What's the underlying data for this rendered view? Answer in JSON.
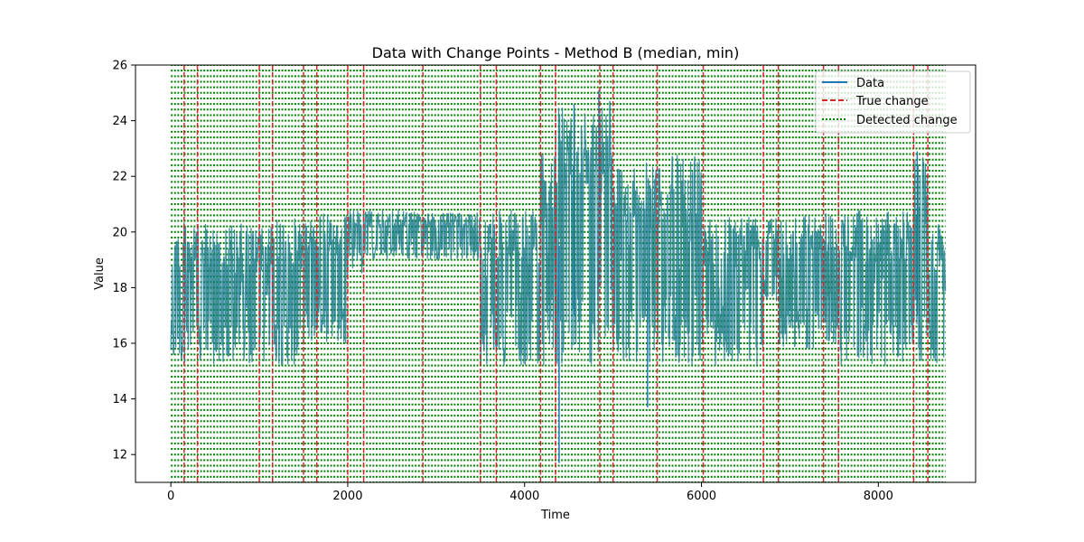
{
  "chart_data": {
    "type": "line",
    "title": "Data with Change Points - Method B (median, min)",
    "xlabel": "Time",
    "ylabel": "Value",
    "xlim": [
      -400,
      9100
    ],
    "ylim": [
      11,
      26
    ],
    "xticks": [
      0,
      2000,
      4000,
      6000,
      8000
    ],
    "yticks": [
      12,
      14,
      16,
      18,
      20,
      22,
      24,
      26
    ],
    "grid": false,
    "legend": {
      "placement": "top-right",
      "entries": [
        "Data",
        "True change",
        "Detected change"
      ]
    },
    "colors": {
      "data": "#1f77b4",
      "true_change": "#d62728",
      "detected_change": "#008000"
    },
    "series": [
      {
        "name": "Data",
        "style": "solid",
        "x_range": [
          0,
          8760
        ],
        "segments": [
          {
            "x": [
              0,
              150
            ],
            "low": 15.3,
            "high": 20.3
          },
          {
            "x": [
              150,
              300
            ],
            "low": 15.3,
            "high": 20.6
          },
          {
            "x": [
              300,
              1000
            ],
            "low": 15.2,
            "high": 20.3
          },
          {
            "x": [
              1000,
              1150
            ],
            "low": 15.3,
            "high": 20.3
          },
          {
            "x": [
              1150,
              1500
            ],
            "low": 15.2,
            "high": 20.5
          },
          {
            "x": [
              1500,
              1650
            ],
            "low": 16.0,
            "high": 20.8
          },
          {
            "x": [
              1650,
              2000
            ],
            "low": 16.0,
            "high": 20.7
          },
          {
            "x": [
              2000,
              2180
            ],
            "low": 18.5,
            "high": 20.8
          },
          {
            "x": [
              2180,
              2850
            ],
            "low": 19.0,
            "high": 20.8
          },
          {
            "x": [
              2850,
              3500
            ],
            "low": 19.0,
            "high": 20.7
          },
          {
            "x": [
              3500,
              3680
            ],
            "low": 15.2,
            "high": 20.8
          },
          {
            "x": [
              3680,
              4180
            ],
            "low": 15.2,
            "high": 20.8
          },
          {
            "x": [
              4180,
              4350
            ],
            "low": 15.2,
            "high": 22.8
          },
          {
            "x": [
              4350,
              4850
            ],
            "low": 15.2,
            "high": 24.6
          },
          {
            "x": [
              4850,
              5000
            ],
            "low": 15.3,
            "high": 25.1
          },
          {
            "x": [
              5000,
              5500
            ],
            "low": 15.3,
            "high": 22.5
          },
          {
            "x": [
              5500,
              6020
            ],
            "low": 15.2,
            "high": 22.8
          },
          {
            "x": [
              6020,
              6700
            ],
            "low": 15.2,
            "high": 20.7
          },
          {
            "x": [
              6700,
              6870
            ],
            "low": 17.5,
            "high": 20.8
          },
          {
            "x": [
              6870,
              7380
            ],
            "low": 15.8,
            "high": 20.7
          },
          {
            "x": [
              7380,
              7550
            ],
            "low": 16.0,
            "high": 20.8
          },
          {
            "x": [
              7550,
              8400
            ],
            "low": 15.2,
            "high": 20.8
          },
          {
            "x": [
              8400,
              8560
            ],
            "low": 15.3,
            "high": 22.8
          },
          {
            "x": [
              8560,
              8760
            ],
            "low": 15.2,
            "high": 20.3
          }
        ],
        "spikes": [
          {
            "x": 4390,
            "low": 11.7,
            "high": 19.5
          },
          {
            "x": 4560,
            "low": 17.0,
            "high": 24.6
          },
          {
            "x": 4840,
            "low": 18.0,
            "high": 25.1
          },
          {
            "x": 5390,
            "low": 13.7,
            "high": 18.0
          },
          {
            "x": 8440,
            "low": 17.0,
            "high": 22.9
          }
        ]
      },
      {
        "name": "True change",
        "style": "dashed",
        "x": [
          150,
          300,
          1000,
          1150,
          1500,
          1650,
          2000,
          2180,
          2850,
          3500,
          3680,
          4180,
          4350,
          4850,
          5000,
          5500,
          6020,
          6700,
          6870,
          7380,
          7550,
          8400,
          8560
        ]
      },
      {
        "name": "Detected change",
        "style": "dotted",
        "orientation": "horizontal",
        "y": [
          11.0,
          11.2,
          11.4,
          11.6,
          11.8,
          12.0,
          12.2,
          12.4,
          12.6,
          12.8,
          13.0,
          13.2,
          13.4,
          13.6,
          13.8,
          14.0,
          14.2,
          14.4,
          14.6,
          14.8,
          15.0,
          15.2,
          15.4,
          15.6,
          15.8,
          16.0,
          16.2,
          16.4,
          16.6,
          16.8,
          17.0,
          17.2,
          17.4,
          17.6,
          17.8,
          18.0,
          18.2,
          18.4,
          18.6,
          18.8,
          19.0,
          19.2,
          19.4,
          19.6,
          19.8,
          20.0,
          20.2,
          20.4,
          20.6,
          20.8,
          21.0,
          21.2,
          21.4,
          21.6,
          21.8,
          22.0,
          22.2,
          22.4,
          22.6,
          22.8,
          23.0,
          23.2,
          23.4,
          23.6,
          23.8,
          24.0,
          24.2,
          24.4,
          24.6,
          24.8,
          25.0,
          25.2,
          25.4,
          25.6,
          25.8,
          26.0
        ],
        "x_range": [
          0,
          8760
        ]
      }
    ]
  }
}
